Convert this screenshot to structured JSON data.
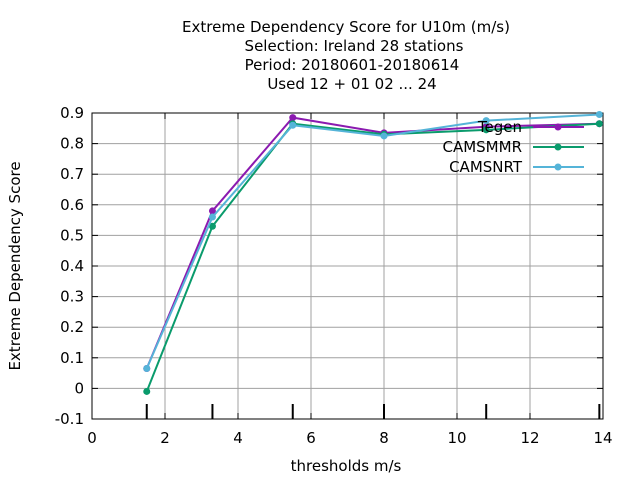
{
  "chart_data": {
    "type": "line",
    "title_lines": [
      "Extreme Dependency Score  for U10m (m/s)",
      "Selection: Ireland      28 stations",
      "Period: 20180601-20180614",
      "Used  12 + 01 02 ... 24"
    ],
    "xlabel": "thresholds m/s",
    "ylabel": "Extreme Dependency Score",
    "xlim": [
      0,
      14
    ],
    "ylim": [
      -0.1,
      0.9
    ],
    "x_ticks": [
      "0",
      "2",
      "4",
      "6",
      "8",
      "10",
      "12",
      "14"
    ],
    "y_ticks": [
      "-0.1",
      "0",
      "0.1",
      "0.2",
      "0.3",
      "0.4",
      "0.5",
      "0.6",
      "0.7",
      "0.8",
      "0.9"
    ],
    "grid": true,
    "legend_position": "top-right",
    "threshold_markers_x": [
      1.5,
      3.3,
      5.5,
      8.0,
      10.8,
      13.9
    ],
    "series": [
      {
        "name": "Tegen",
        "color": "#8b1ab0",
        "x": [
          1.5,
          3.3,
          5.5,
          8.0,
          10.8,
          13.9
        ],
        "y": [
          0.065,
          0.58,
          0.885,
          0.835,
          0.855,
          0.865
        ]
      },
      {
        "name": "CAMSMMR",
        "color": "#0a9b6c",
        "x": [
          1.5,
          3.3,
          5.5,
          8.0,
          10.8,
          13.9
        ],
        "y": [
          -0.01,
          0.53,
          0.865,
          0.83,
          0.845,
          0.865
        ]
      },
      {
        "name": "CAMSNRT",
        "color": "#55b4d8",
        "x": [
          1.5,
          3.3,
          5.5,
          8.0,
          10.8,
          13.9
        ],
        "y": [
          0.065,
          0.56,
          0.86,
          0.825,
          0.875,
          0.895
        ]
      }
    ]
  }
}
